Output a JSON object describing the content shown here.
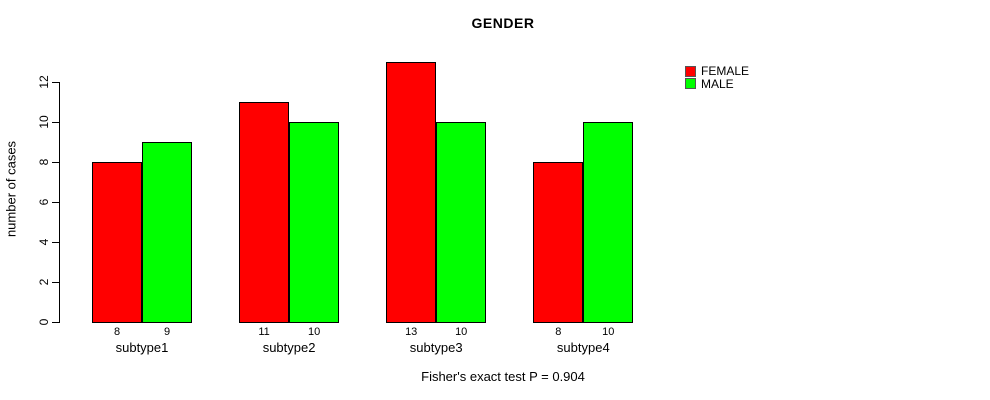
{
  "chart_data": {
    "type": "bar",
    "title": "GENDER",
    "ylabel": "number of cases",
    "xlabel": "",
    "categories": [
      "subtype1",
      "subtype2",
      "subtype3",
      "subtype4"
    ],
    "series": [
      {
        "name": "FEMALE",
        "color": "#ff0000",
        "values": [
          8,
          11,
          13,
          8
        ]
      },
      {
        "name": "MALE",
        "color": "#00ff00",
        "values": [
          9,
          10,
          10,
          10
        ]
      }
    ],
    "bar_value_labels_shown": true,
    "yticks": [
      0,
      2,
      4,
      6,
      8,
      10,
      12
    ],
    "ylim": [
      0,
      12
    ],
    "grid": false,
    "legend_position": "top-right",
    "bar_border_color": "#000000",
    "background_color": "#ffffff",
    "caption": "Fisher's exact test P = 0.904"
  }
}
